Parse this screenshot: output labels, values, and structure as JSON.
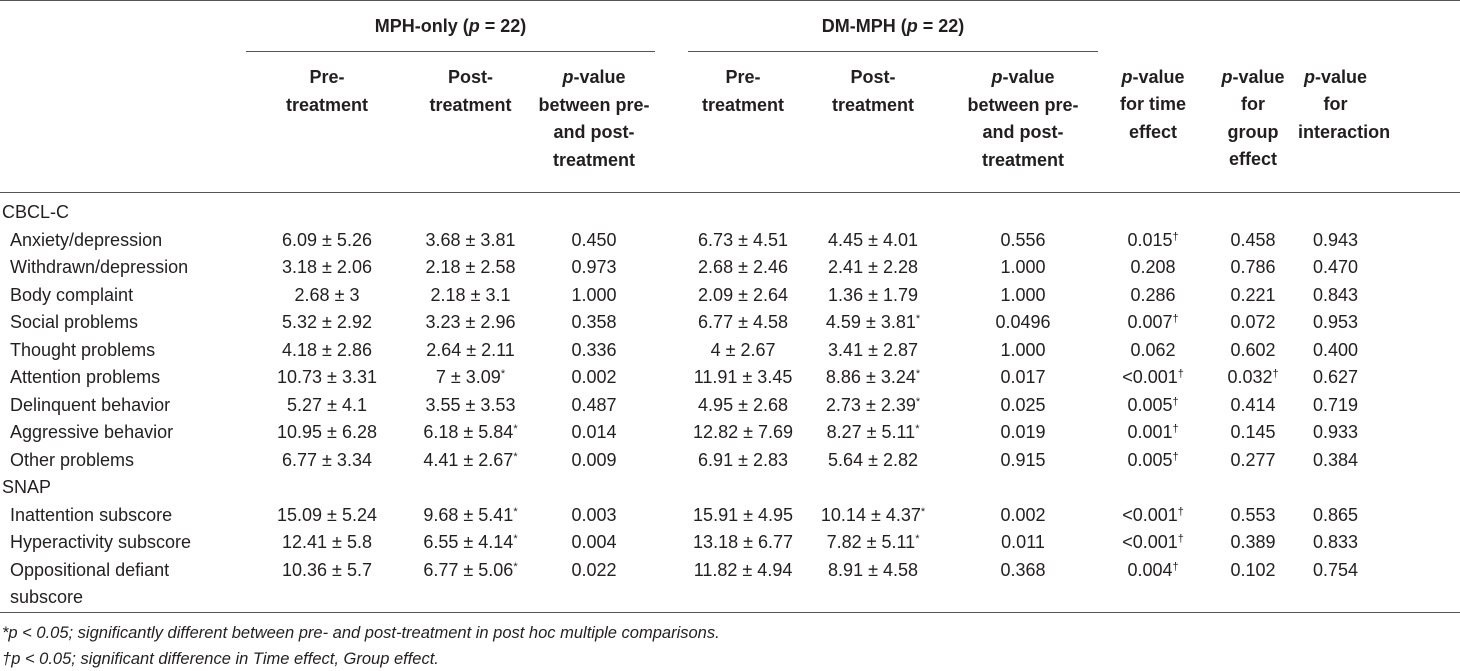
{
  "groups": [
    {
      "label": "MPH-only (p = 22)",
      "prefix": "MPH-only (",
      "pvar": "p",
      "suffix": " = 22)"
    },
    {
      "label": "DM-MPH (p = 22)",
      "prefix": "DM-MPH (",
      "pvar": "p",
      "suffix": " = 22)"
    }
  ],
  "headers": {
    "pre": [
      "Pre-",
      "treatment"
    ],
    "post": [
      "Post-",
      "treatment"
    ],
    "pv_between": {
      "p": "p",
      "rest": [
        "-value",
        "between pre-",
        "and post-",
        "treatment"
      ]
    },
    "pv_time": {
      "p": "p",
      "rest": [
        "-value",
        "for time",
        "effect"
      ]
    },
    "pv_group": {
      "p": "p",
      "rest": [
        "-value",
        "for",
        "group",
        "effect"
      ]
    },
    "pv_inter": {
      "p": "p",
      "rest": [
        "-value for",
        "interaction"
      ]
    }
  },
  "sections": [
    {
      "title": "CBCL-C",
      "rows": [
        {
          "label": "Anxiety/depression",
          "vals": [
            "6.09 ± 5.26",
            "3.68 ± 3.81",
            "0.450",
            "6.73 ± 4.51",
            "4.45 ± 4.01",
            "0.556",
            "0.015†",
            "0.458",
            "0.943"
          ]
        },
        {
          "label": "Withdrawn/depression",
          "vals": [
            "3.18 ± 2.06",
            "2.18 ± 2.58",
            "0.973",
            "2.68 ± 2.46",
            "2.41 ± 2.28",
            "1.000",
            "0.208",
            "0.786",
            "0.470"
          ]
        },
        {
          "label": "Body complaint",
          "vals": [
            "2.68 ± 3",
            "2.18 ± 3.1",
            "1.000",
            "2.09 ± 2.64",
            "1.36 ± 1.79",
            "1.000",
            "0.286",
            "0.221",
            "0.843"
          ]
        },
        {
          "label": "Social problems",
          "vals": [
            "5.32 ± 2.92",
            "3.23 ± 2.96",
            "0.358",
            "6.77 ± 4.58",
            "4.59 ± 3.81*",
            "0.0496",
            "0.007†",
            "0.072",
            "0.953"
          ]
        },
        {
          "label": "Thought problems",
          "vals": [
            "4.18 ± 2.86",
            "2.64 ± 2.11",
            "0.336",
            "4 ± 2.67",
            "3.41 ± 2.87",
            "1.000",
            "0.062",
            "0.602",
            "0.400"
          ]
        },
        {
          "label": "Attention problems",
          "vals": [
            "10.73 ± 3.31",
            "7 ± 3.09*",
            "0.002",
            "11.91 ± 3.45",
            "8.86 ± 3.24*",
            "0.017",
            "<0.001†",
            "0.032†",
            "0.627"
          ]
        },
        {
          "label": "Delinquent behavior",
          "vals": [
            "5.27 ± 4.1",
            "3.55 ± 3.53",
            "0.487",
            "4.95 ± 2.68",
            "2.73 ± 2.39*",
            "0.025",
            "0.005†",
            "0.414",
            "0.719"
          ]
        },
        {
          "label": "Aggressive behavior",
          "vals": [
            "10.95 ± 6.28",
            "6.18 ± 5.84*",
            "0.014",
            "12.82 ± 7.69",
            "8.27 ± 5.11*",
            "0.019",
            "0.001†",
            "0.145",
            "0.933"
          ]
        },
        {
          "label": "Other problems",
          "vals": [
            "6.77 ± 3.34",
            "4.41 ± 2.67*",
            "0.009",
            "6.91 ± 2.83",
            "5.64 ± 2.82",
            "0.915",
            "0.005†",
            "0.277",
            "0.384"
          ]
        }
      ]
    },
    {
      "title": "SNAP",
      "rows": [
        {
          "label": "Inattention subscore",
          "vals": [
            "15.09 ± 5.24",
            "9.68 ± 5.41*",
            "0.003",
            "15.91 ± 4.95",
            "10.14 ± 4.37*",
            "0.002",
            "<0.001†",
            "0.553",
            "0.865"
          ]
        },
        {
          "label": "Hyperactivity subscore",
          "vals": [
            "12.41 ± 5.8",
            "6.55 ± 4.14*",
            "0.004",
            "13.18 ± 6.77",
            "7.82 ± 5.11*",
            "0.011",
            "<0.001†",
            "0.389",
            "0.833"
          ]
        },
        {
          "label": "Oppositional defiant subscore",
          "vals": [
            "10.36 ± 5.7",
            "6.77 ± 5.06*",
            "0.022",
            "11.82 ± 4.94",
            "8.91 ± 4.58",
            "0.368",
            "0.004†",
            "0.102",
            "0.754"
          ]
        }
      ]
    }
  ],
  "footnotes": [
    {
      "mark": "*",
      "text": "p < 0.05; significantly different between pre- and post-treatment in post hoc multiple comparisons."
    },
    {
      "mark": "†",
      "text": "p < 0.05; significant difference in Time effect, Group effect."
    }
  ]
}
